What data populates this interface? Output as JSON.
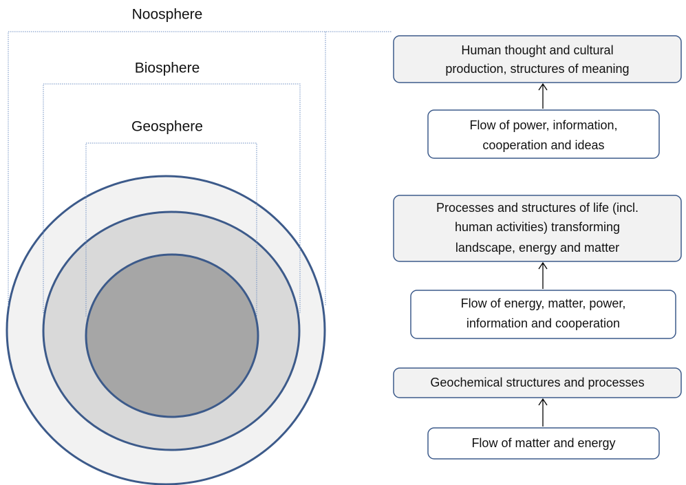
{
  "spheres": [
    "Noosphere",
    "Biosphere",
    "Geosphere"
  ],
  "boxes": [
    {
      "lines": [
        "Human thought and cultural",
        "production, structures of meaning"
      ]
    },
    {
      "lines": [
        "Flow of power, information,",
        "cooperation and ideas"
      ]
    },
    {
      "lines": [
        "Processes and structures of life (incl.",
        "human activities) transforming",
        "landscape, energy and matter"
      ]
    },
    {
      "lines": [
        "Flow of energy, matter, power,",
        "information and cooperation"
      ]
    },
    {
      "lines": [
        "Geochemical structures and processes"
      ]
    },
    {
      "lines": [
        "Flow of matter and energy"
      ]
    }
  ]
}
